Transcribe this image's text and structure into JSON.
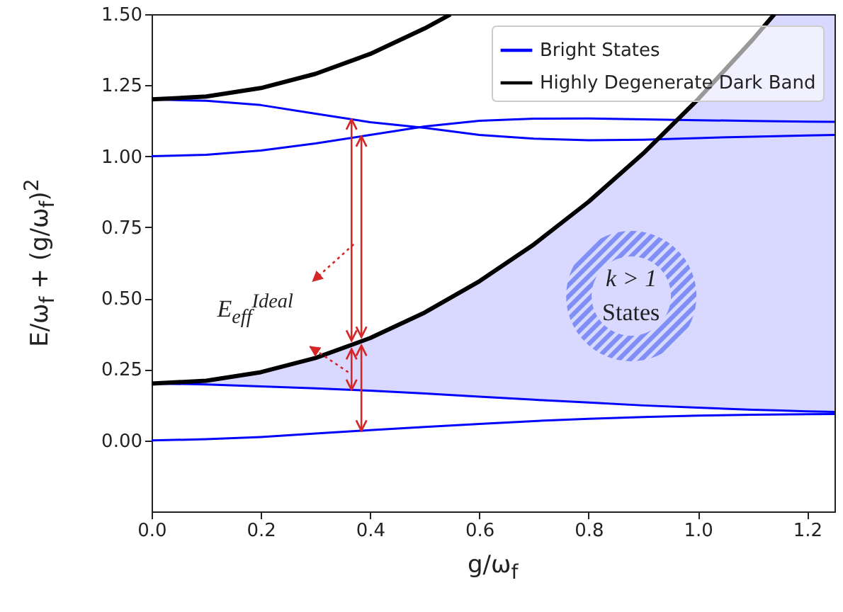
{
  "chart_data": {
    "type": "line",
    "xlabel": "g/ω$_{f}$",
    "ylabel": "E/ω$_{f}$ + (g/ω$_{f}$)$^{2}$",
    "xlim": [
      0,
      1.25
    ],
    "ylim": [
      -0.25,
      1.5
    ],
    "xticks": [
      {
        "value": 0,
        "label": "0.0"
      },
      {
        "value": 0.2,
        "label": "0.2"
      },
      {
        "value": 0.4,
        "label": "0.4"
      },
      {
        "value": 0.6,
        "label": "0.6"
      },
      {
        "value": 0.8,
        "label": "0.8"
      },
      {
        "value": 1,
        "label": "1.0"
      },
      {
        "value": 1.2,
        "label": "1.2"
      }
    ],
    "yticks": [
      {
        "value": 0,
        "label": "0.00"
      },
      {
        "value": 0.25,
        "label": "0.25"
      },
      {
        "value": 0.5,
        "label": "0.50"
      },
      {
        "value": 0.75,
        "label": "0.75"
      },
      {
        "value": 1,
        "label": "1.00"
      },
      {
        "value": 1.25,
        "label": "1.25"
      },
      {
        "value": 1.5,
        "label": "1.50"
      }
    ],
    "grid": false,
    "legend": "top right",
    "annotations": [
      "E$_{eff}$$^{Ideal}$",
      "k > 1",
      "States"
    ],
    "series": [
      {
        "name": "Bright States",
        "color": "#0000ff",
        "x": [
          0,
          0.1,
          0.2,
          0.3,
          0.4,
          0.5,
          0.6,
          0.7,
          0.8,
          0.9,
          1.0,
          1.1,
          1.2,
          1.25
        ],
        "values": [
          1.2,
          1.195,
          1.18,
          1.15,
          1.12,
          1.1,
          1.075,
          1.062,
          1.056,
          1.058,
          1.064,
          1.069,
          1.073,
          1.075
        ]
      },
      {
        "color": "#0000ff",
        "x": [
          0,
          0.1,
          0.2,
          0.3,
          0.4,
          0.5,
          0.6,
          0.7,
          0.8,
          0.9,
          1.0,
          1.1,
          1.2,
          1.25
        ],
        "values": [
          1.0,
          1.005,
          1.02,
          1.045,
          1.075,
          1.105,
          1.125,
          1.132,
          1.133,
          1.13,
          1.127,
          1.124,
          1.122,
          1.121
        ]
      },
      {
        "color": "#0000ff",
        "x": [
          0,
          0.1,
          0.2,
          0.3,
          0.4,
          0.5,
          0.6,
          0.7,
          0.8,
          0.9,
          1.0,
          1.1,
          1.14,
          1.2,
          1.25
        ],
        "values": [
          0.2,
          0.197,
          0.19,
          0.183,
          0.175,
          0.165,
          0.154,
          0.143,
          0.133,
          0.123,
          0.115,
          0.108,
          0.106,
          0.102,
          0.1
        ],
        "lower": [
          0.2,
          0.197,
          0.19,
          0.183,
          0.175,
          0.165,
          0.154,
          0.143,
          0.133,
          0.123,
          0.115,
          0.108,
          0.106,
          0.102,
          0.1
        ],
        "upper": [
          0.2,
          0.21,
          0.24,
          0.29,
          0.36,
          0.45,
          0.56,
          0.69,
          0.84,
          1.01,
          1.2,
          1.41,
          1.5,
          1.5,
          1.5
        ]
      },
      {
        "color": "#0000ff",
        "x": [
          0,
          0.1,
          0.2,
          0.3,
          0.4,
          0.5,
          0.6,
          0.7,
          0.8,
          0.9,
          1.0,
          1.1,
          1.2,
          1.25
        ],
        "values": [
          0,
          0.004,
          0.012,
          0.024,
          0.036,
          0.047,
          0.058,
          0.068,
          0.076,
          0.082,
          0.087,
          0.09,
          0.092,
          0.093
        ]
      },
      {
        "name": "Highly Degenerate Dark Band",
        "color": "#000000",
        "x": [
          0,
          0.1,
          0.2,
          0.3,
          0.4,
          0.5,
          0.547
        ],
        "values": [
          1.2,
          1.21,
          1.24,
          1.29,
          1.36,
          1.45,
          1.499
        ]
      },
      {
        "color": "#000000",
        "x": [
          0,
          0.1,
          0.2,
          0.3,
          0.4,
          0.5,
          0.6,
          0.7,
          0.8,
          0.9,
          1.0,
          1.1,
          1.14
        ],
        "values": [
          0.2,
          0.21,
          0.24,
          0.29,
          0.36,
          0.45,
          0.56,
          0.69,
          0.84,
          1.01,
          1.2,
          1.41,
          1.5
        ]
      }
    ]
  }
}
